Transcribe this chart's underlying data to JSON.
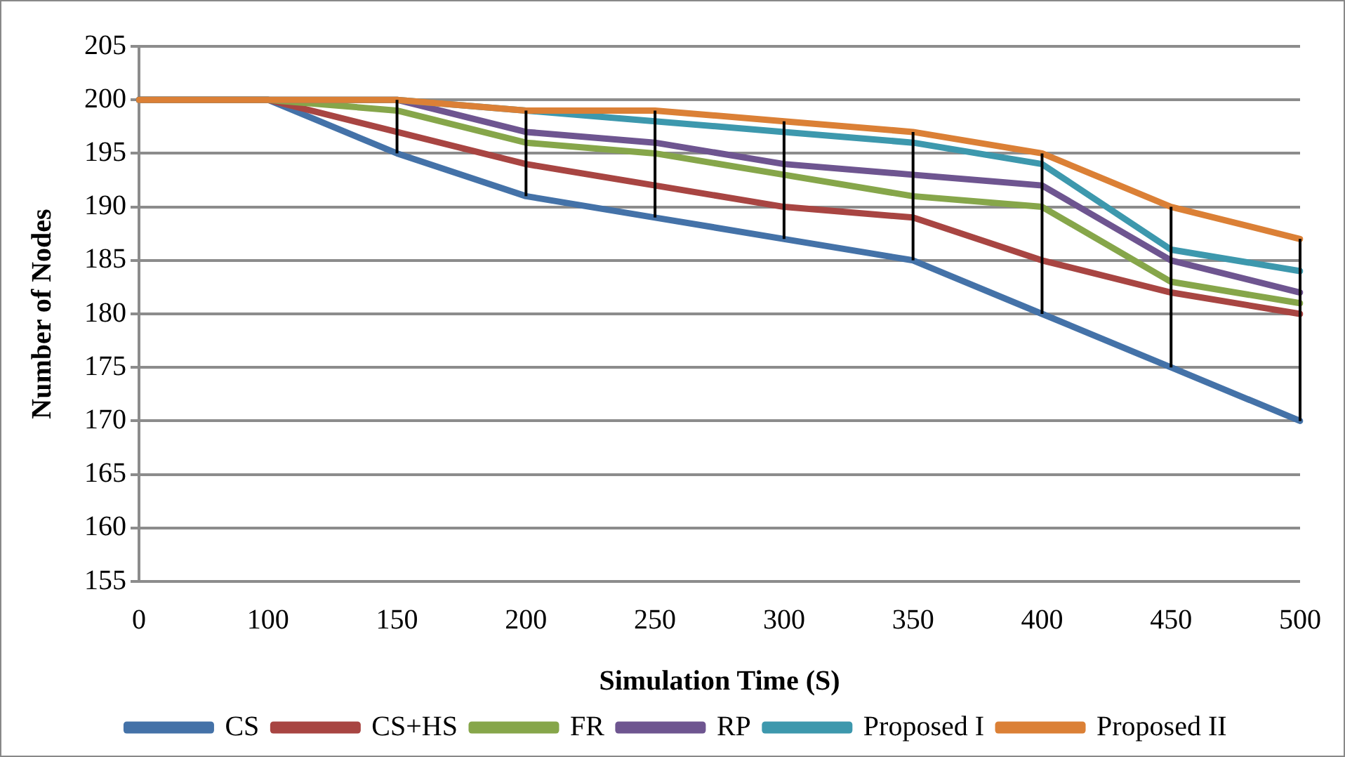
{
  "chart_data": {
    "type": "line",
    "xlabel": "Simulation Time (S)",
    "ylabel": "Number of Nodes",
    "categories": [
      "0",
      "100",
      "150",
      "200",
      "250",
      "300",
      "350",
      "400",
      "450",
      "500"
    ],
    "series": [
      {
        "name": "CS",
        "color": "#4472a8",
        "values": [
          200,
          200,
          195,
          191,
          189,
          187,
          185,
          180,
          175,
          170
        ]
      },
      {
        "name": "CS+HS",
        "color": "#a84542",
        "values": [
          200,
          200,
          197,
          194,
          192,
          190,
          189,
          185,
          182,
          180
        ]
      },
      {
        "name": "FR",
        "color": "#86a64a",
        "values": [
          200,
          200,
          199,
          196,
          195,
          193,
          191,
          190,
          183,
          181
        ]
      },
      {
        "name": "RP",
        "color": "#6e5590",
        "values": [
          200,
          200,
          200,
          197,
          196,
          194,
          193,
          192,
          185,
          182
        ]
      },
      {
        "name": "Proposed I",
        "color": "#3d98ad",
        "values": [
          200,
          200,
          200,
          199,
          198,
          197,
          196,
          194,
          186,
          184
        ]
      },
      {
        "name": "Proposed II",
        "color": "#db8036",
        "values": [
          200,
          200,
          200,
          199,
          199,
          198,
          197,
          195,
          190,
          187
        ]
      },
      {
        "color": "#000000",
        "x": [
          "150",
          "150"
        ],
        "values": [
          195,
          200
        ]
      },
      {
        "color": "#000000",
        "x": [
          "200",
          "200"
        ],
        "values": [
          191,
          199
        ]
      },
      {
        "color": "#000000",
        "x": [
          "250",
          "250"
        ],
        "values": [
          189,
          199
        ]
      },
      {
        "color": "#000000",
        "x": [
          "300",
          "300"
        ],
        "values": [
          187,
          198
        ]
      },
      {
        "color": "#000000",
        "x": [
          "350",
          "350"
        ],
        "values": [
          185,
          197
        ]
      },
      {
        "color": "#000000",
        "x": [
          "400",
          "400"
        ],
        "values": [
          180,
          195
        ]
      },
      {
        "color": "#000000",
        "x": [
          "450",
          "450"
        ],
        "values": [
          175,
          190
        ]
      },
      {
        "color": "#000000",
        "x": [
          "500",
          "500"
        ],
        "values": [
          170,
          187
        ]
      }
    ],
    "ylim": [
      155,
      205
    ],
    "yticks": [
      155,
      160,
      165,
      170,
      175,
      180,
      185,
      190,
      195,
      200,
      205
    ],
    "grid": "y",
    "legend": "bottom",
    "marker": "none",
    "line_style": "solid"
  }
}
